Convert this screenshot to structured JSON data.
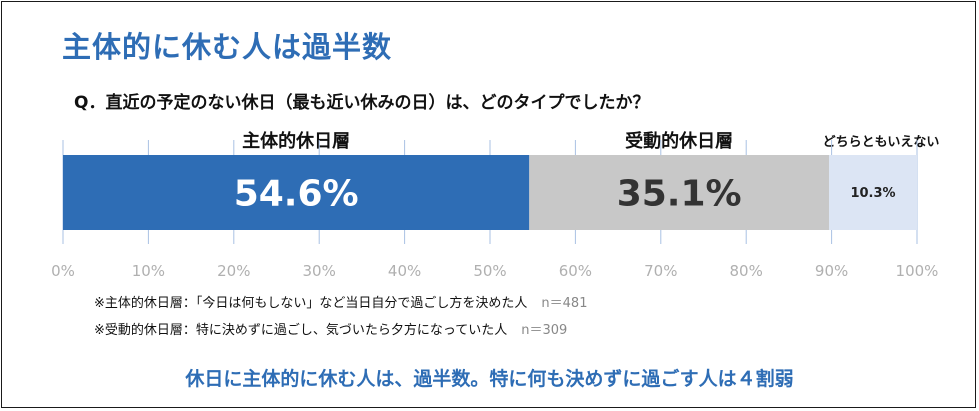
{
  "headline": "主体的に休む人は過半数",
  "question": "Q．直近の予定のない休日（最も近い休みの日）は、どのタイプでしたか？",
  "chart_data": {
    "type": "bar",
    "orientation": "horizontal-stacked-100",
    "categories": [
      "主体的休日層",
      "受動的休日層",
      "どちらともいえない"
    ],
    "values": [
      54.6,
      35.1,
      10.3
    ],
    "value_labels": [
      "54.6%",
      "35.1%",
      "10.3%"
    ],
    "colors": [
      "#2e6db5",
      "#c8c8c8",
      "#dce5f4"
    ],
    "label_colors": [
      "#ffffff",
      "#333333",
      "#222222"
    ],
    "xlim": [
      0,
      100
    ],
    "xticks": [
      "0%",
      "10%",
      "20%",
      "30%",
      "40%",
      "50%",
      "60%",
      "70%",
      "80%",
      "90%",
      "100%"
    ],
    "grid": true
  },
  "notes": [
    {
      "text": "※主体的休日層：「今日は何もしない」など当日自分で過ごし方を決めた人",
      "n": "n＝481"
    },
    {
      "text": "※受動的休日層：特に決めずに過ごし、気づいたら夕方になっていた人",
      "n": "n＝309"
    }
  ],
  "footer": "休日に主体的に休む人は、過半数。特に何も決めずに過ごす人は４割弱"
}
